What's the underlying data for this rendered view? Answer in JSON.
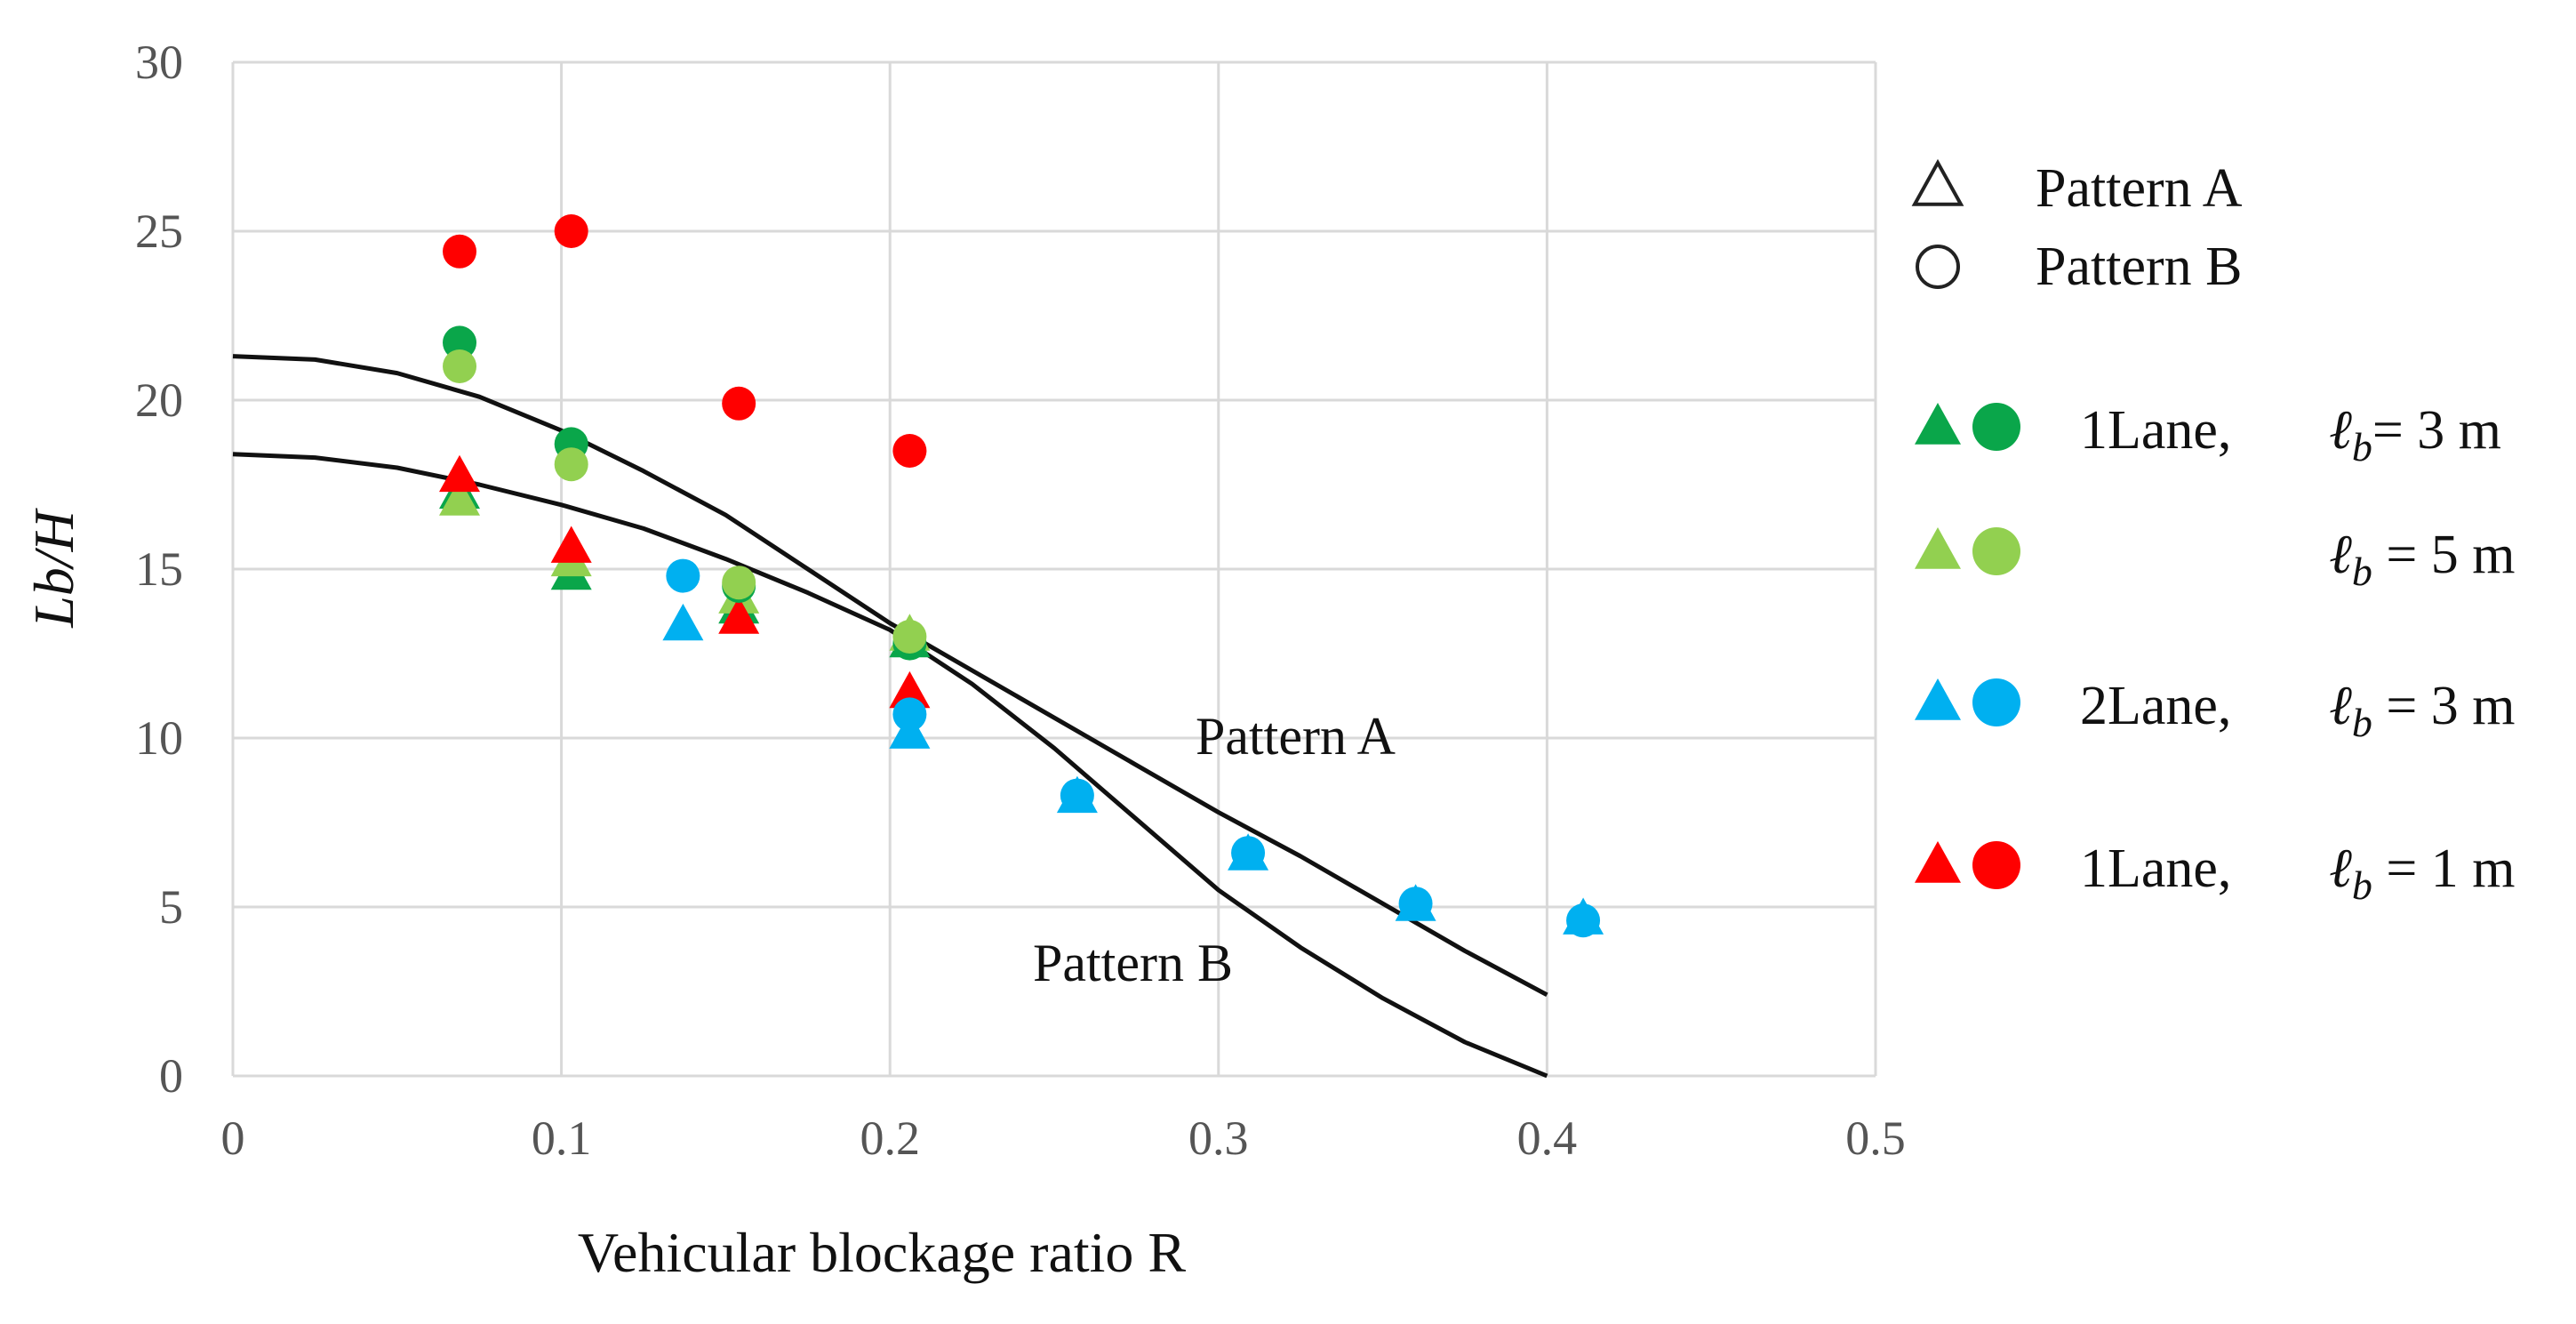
{
  "chart_data": {
    "type": "scatter",
    "title": "",
    "xlabel": "Vehicular blockage ratio R",
    "ylabel": "Lb/H",
    "xlim": [
      0,
      0.5
    ],
    "ylim": [
      0,
      30
    ],
    "x_ticks": [
      "0",
      "0.1",
      "0.2",
      "0.3",
      "0.4",
      "0.5"
    ],
    "y_ticks": [
      "0",
      "5",
      "10",
      "15",
      "20",
      "25",
      "30"
    ],
    "grid": true,
    "legend_position": "right",
    "colors": {
      "green_dark": "#0aa64a",
      "green_light": "#92d050",
      "blue": "#00b0f0",
      "red": "#ff0000",
      "curve": "#111111"
    },
    "curves": [
      {
        "name": "Pattern A",
        "label": "Pattern A",
        "x": [
          0,
          0.025,
          0.05,
          0.075,
          0.1,
          0.125,
          0.15,
          0.175,
          0.2,
          0.225,
          0.25,
          0.275,
          0.3,
          0.325,
          0.35,
          0.375,
          0.4
        ],
        "y": [
          21.3,
          21.2,
          20.8,
          20.1,
          19.1,
          17.9,
          16.6,
          15.0,
          13.4,
          12.0,
          10.6,
          9.2,
          7.8,
          6.5,
          5.1,
          3.7,
          2.4
        ]
      },
      {
        "name": "Pattern B",
        "label": "Pattern B",
        "x": [
          0,
          0.025,
          0.05,
          0.075,
          0.1,
          0.125,
          0.15,
          0.175,
          0.2,
          0.225,
          0.25,
          0.275,
          0.3,
          0.325,
          0.35,
          0.375,
          0.4
        ],
        "y": [
          18.4,
          18.3,
          18.0,
          17.5,
          16.9,
          16.2,
          15.3,
          14.3,
          13.2,
          11.6,
          9.7,
          7.6,
          5.5,
          3.8,
          2.3,
          1.0,
          0.0
        ]
      }
    ],
    "series": [
      {
        "name": "1Lane, lb = 3 m (Pattern A)",
        "shape": "triangle",
        "color_key": "green_dark",
        "points": [
          [
            0.069,
            17.2
          ],
          [
            0.103,
            14.8
          ],
          [
            0.154,
            13.8
          ],
          [
            0.206,
            12.8
          ]
        ]
      },
      {
        "name": "1Lane, lb = 3 m (Pattern B)",
        "shape": "circle",
        "color_key": "green_dark",
        "points": [
          [
            0.069,
            21.7
          ],
          [
            0.103,
            18.7
          ],
          [
            0.154,
            14.5
          ],
          [
            0.206,
            12.8
          ]
        ]
      },
      {
        "name": "lb = 5 m (Pattern A)",
        "shape": "triangle",
        "color_key": "green_light",
        "points": [
          [
            0.069,
            17.0
          ],
          [
            0.103,
            15.2
          ],
          [
            0.154,
            14.1
          ],
          [
            0.206,
            13.0
          ]
        ]
      },
      {
        "name": "lb = 5 m (Pattern B)",
        "shape": "circle",
        "color_key": "green_light",
        "points": [
          [
            0.069,
            21.0
          ],
          [
            0.103,
            18.1
          ],
          [
            0.154,
            14.6
          ],
          [
            0.206,
            13.0
          ]
        ]
      },
      {
        "name": "2Lane, lb = 3 m (Pattern A)",
        "shape": "triangle",
        "color_key": "blue",
        "points": [
          [
            0.137,
            13.3
          ],
          [
            0.206,
            10.1
          ],
          [
            0.257,
            8.2
          ],
          [
            0.309,
            6.5
          ],
          [
            0.36,
            5.0
          ],
          [
            0.411,
            4.6
          ]
        ]
      },
      {
        "name": "2Lane, lb = 3 m (Pattern B)",
        "shape": "circle",
        "color_key": "blue",
        "points": [
          [
            0.137,
            14.8
          ],
          [
            0.206,
            10.7
          ],
          [
            0.257,
            8.3
          ],
          [
            0.309,
            6.6
          ],
          [
            0.36,
            5.1
          ],
          [
            0.411,
            4.6
          ]
        ]
      },
      {
        "name": "1Lane, lb = 1 m (Pattern A)",
        "shape": "triangle",
        "color_key": "red",
        "points": [
          [
            0.069,
            17.7
          ],
          [
            0.103,
            15.6
          ],
          [
            0.154,
            13.5
          ],
          [
            0.206,
            11.3
          ]
        ]
      },
      {
        "name": "1Lane, lb = 1 m (Pattern B)",
        "shape": "circle",
        "color_key": "red",
        "points": [
          [
            0.069,
            24.4
          ],
          [
            0.103,
            25.0
          ],
          [
            0.154,
            19.9
          ],
          [
            0.206,
            18.5
          ]
        ]
      }
    ],
    "legend": {
      "pattern_a": "Pattern A",
      "pattern_b": "Pattern B",
      "entries": [
        {
          "prefix": "1Lane,",
          "ell": "ℓ",
          "sub": "b",
          "suffix": "= 3 m",
          "color_key": "green_dark"
        },
        {
          "prefix": "",
          "ell": "ℓ",
          "sub": "b",
          "suffix": " = 5 m",
          "color_key": "green_light"
        },
        {
          "prefix": "2Lane,",
          "ell": "ℓ",
          "sub": "b",
          "suffix": " = 3 m",
          "color_key": "blue"
        },
        {
          "prefix": "1Lane,",
          "ell": "ℓ",
          "sub": "b",
          "suffix": " = 1 m",
          "color_key": "red"
        }
      ]
    }
  }
}
